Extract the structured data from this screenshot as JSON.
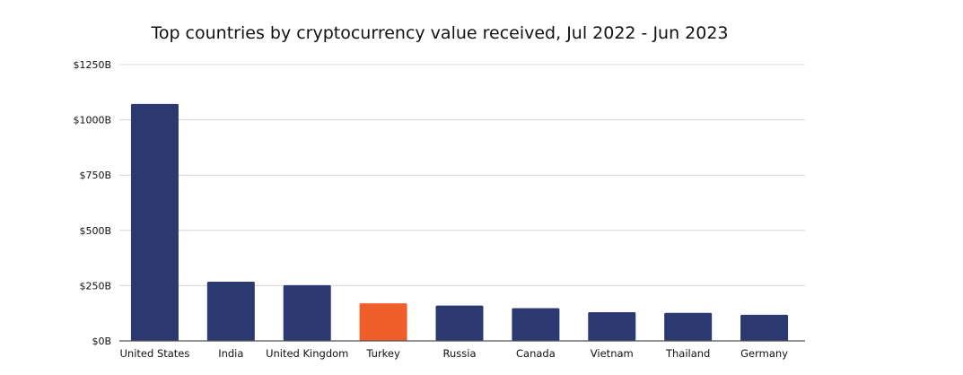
{
  "chart_data": {
    "type": "bar",
    "title": "Top countries by cryptocurrency value received, Jul 2022 - Jun 2023",
    "xlabel": "",
    "ylabel": "",
    "categories": [
      "United States",
      "India",
      "United Kingdom",
      "Turkey",
      "Russia",
      "Canada",
      "Vietnam",
      "Thailand",
      "Germany"
    ],
    "values": [
      1072,
      268,
      252,
      170,
      160,
      148,
      130,
      127,
      118
    ],
    "ylim": [
      0,
      1250
    ],
    "yticks": [
      0,
      250,
      500,
      750,
      1000,
      1250
    ],
    "ytick_labels": [
      "$0B",
      "$250B",
      "$500B",
      "$750B",
      "$1000B",
      "$1250B"
    ],
    "grid": true,
    "colors": {
      "default": "#2b3970",
      "highlight": "#f05f2b",
      "highlight_category": "Turkey",
      "grid": "#d6d6d6",
      "axis": "#555555"
    }
  }
}
